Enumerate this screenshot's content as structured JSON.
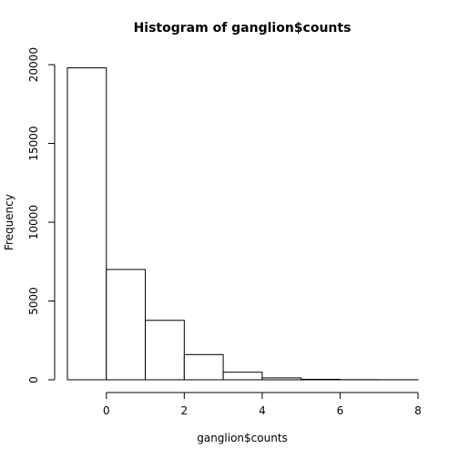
{
  "chart_data": {
    "type": "bar",
    "title": "Histogram of ganglion$counts",
    "xlabel": "ganglion$counts",
    "ylabel": "Frequency",
    "bin_edges": [
      -1,
      0,
      1,
      2,
      3,
      4,
      5,
      6,
      7,
      8
    ],
    "values": [
      19800,
      7000,
      3770,
      1600,
      480,
      120,
      30,
      8,
      3
    ],
    "xlim": [
      -1,
      8
    ],
    "ylim": [
      0,
      20000
    ],
    "x_ticks": [
      0,
      2,
      4,
      6,
      8
    ],
    "y_ticks": [
      0,
      5000,
      10000,
      15000,
      20000
    ],
    "bar_fill": "#ffffff",
    "bar_stroke": "#000000",
    "grid": false,
    "legend": "none"
  }
}
